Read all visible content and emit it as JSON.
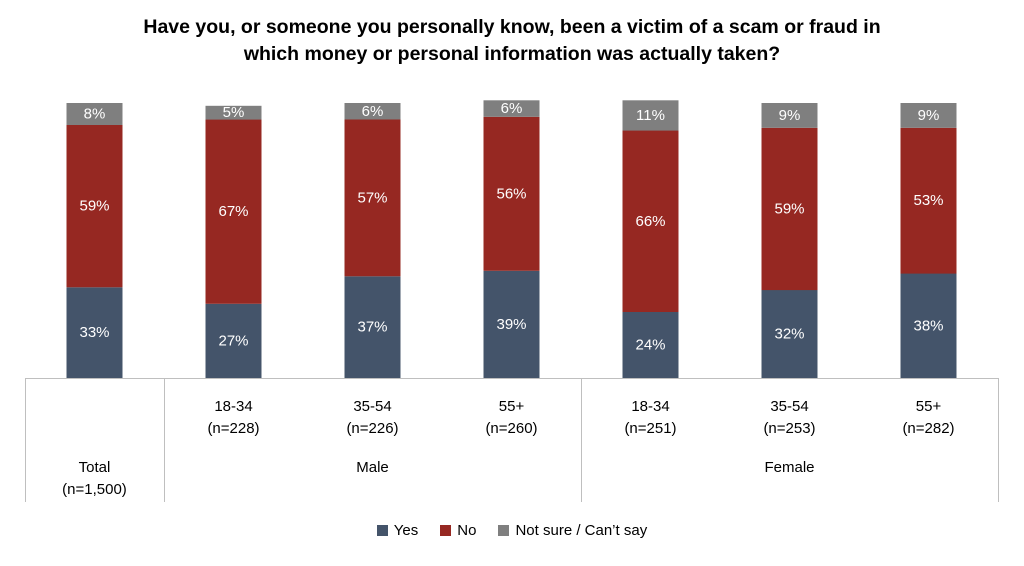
{
  "chart_data": {
    "type": "bar",
    "stacked": true,
    "title_lines": [
      "Have you, or someone you personally know, been a victim of a scam or fraud in",
      "which money or personal information was actually taken?"
    ],
    "categories": [
      {
        "label": "Total",
        "n": "(n=1,500)",
        "group": ""
      },
      {
        "label": "18-34",
        "n": "(n=228)",
        "group": "Male"
      },
      {
        "label": "35-54",
        "n": "(n=226)",
        "group": "Male"
      },
      {
        "label": "55+",
        "n": "(n=260)",
        "group": "Male"
      },
      {
        "label": "18-34",
        "n": "(n=251)",
        "group": "Female"
      },
      {
        "label": "35-54",
        "n": "(n=253)",
        "group": "Female"
      },
      {
        "label": "55+",
        "n": "(n=282)",
        "group": "Female"
      }
    ],
    "groups": [
      "Male",
      "Female"
    ],
    "series": [
      {
        "name": "Yes",
        "color": "#44546a",
        "values": [
          33,
          27,
          37,
          39,
          24,
          32,
          38
        ]
      },
      {
        "name": "No",
        "color": "#962822",
        "values": [
          59,
          67,
          57,
          56,
          66,
          59,
          53
        ]
      },
      {
        "name": "Not sure / Can’t say",
        "color": "#7f7f7f",
        "values": [
          8,
          5,
          6,
          6,
          11,
          9,
          9
        ]
      }
    ],
    "value_suffix": "%",
    "ylim": [
      0,
      100
    ],
    "legend_position": "bottom",
    "grid": false
  }
}
